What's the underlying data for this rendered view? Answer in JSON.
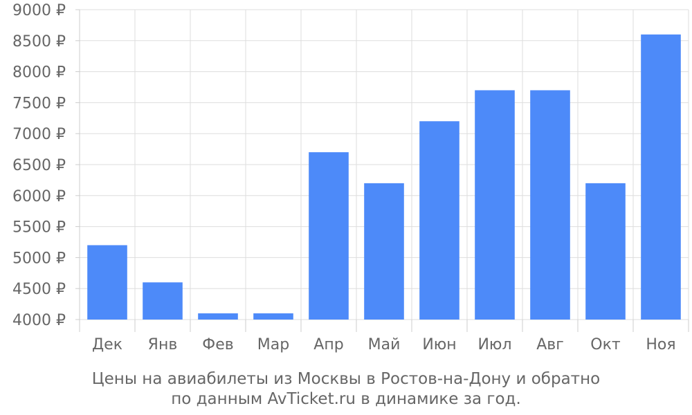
{
  "chart_data": {
    "type": "bar",
    "categories": [
      "Дек",
      "Янв",
      "Фев",
      "Мар",
      "Апр",
      "Май",
      "Июн",
      "Июл",
      "Авг",
      "Окт",
      "Ноя"
    ],
    "values": [
      5200,
      4600,
      4100,
      4100,
      6700,
      6200,
      7200,
      7700,
      7700,
      6200,
      8600
    ],
    "ylim": [
      4000,
      9000
    ],
    "yticks": [
      4000,
      4500,
      5000,
      5500,
      6000,
      6500,
      7000,
      7500,
      8000,
      8500,
      9000
    ],
    "currency_suffix": "₽",
    "grid": true,
    "bar_color": "#4d8af9",
    "caption_line1": "Цены на авиабилеты из Москвы в Ростов-на-Дону и обратно",
    "caption_line2": "по данным AvTicket.ru в динамике за год."
  }
}
